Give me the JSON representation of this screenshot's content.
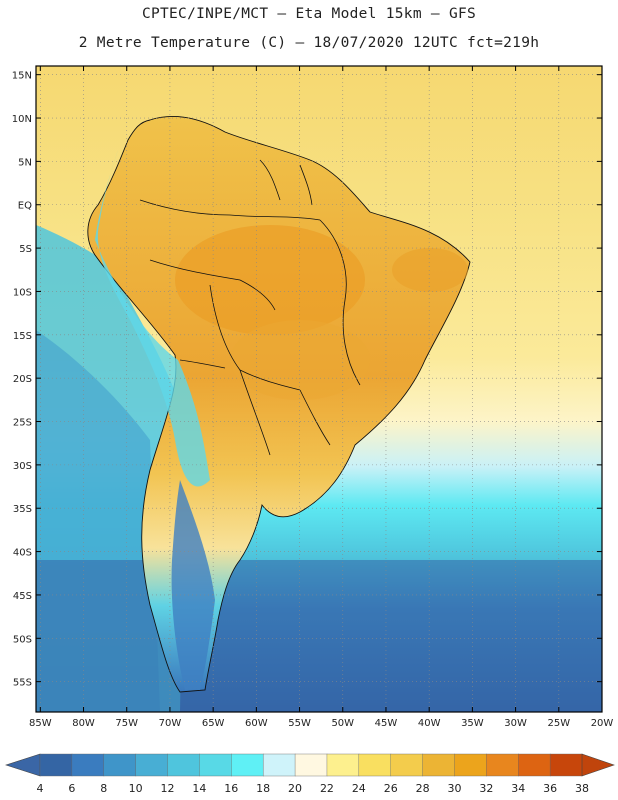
{
  "title": {
    "line1": "CPTEC/INPE/MCT –  Eta Model 15km – GFS",
    "line2": "2 Metre Temperature (C) – 18/07/2020 12UTC fct=219h"
  },
  "map": {
    "region": "South America",
    "projection": "lat-lon",
    "lon_range": [
      -85.5,
      -20
    ],
    "lat_range": [
      -58.5,
      16
    ],
    "lat_ticks": [
      {
        "value": 15,
        "label": "15N"
      },
      {
        "value": 10,
        "label": "10N"
      },
      {
        "value": 5,
        "label": "5N"
      },
      {
        "value": 0,
        "label": "EQ"
      },
      {
        "value": -5,
        "label": "5S"
      },
      {
        "value": -10,
        "label": "10S"
      },
      {
        "value": -15,
        "label": "15S"
      },
      {
        "value": -20,
        "label": "20S"
      },
      {
        "value": -25,
        "label": "25S"
      },
      {
        "value": -30,
        "label": "30S"
      },
      {
        "value": -35,
        "label": "35S"
      },
      {
        "value": -40,
        "label": "40S"
      },
      {
        "value": -45,
        "label": "45S"
      },
      {
        "value": -50,
        "label": "50S"
      },
      {
        "value": -55,
        "label": "55S"
      }
    ],
    "lon_ticks": [
      {
        "value": -85,
        "label": "85W"
      },
      {
        "value": -80,
        "label": "80W"
      },
      {
        "value": -75,
        "label": "75W"
      },
      {
        "value": -70,
        "label": "70W"
      },
      {
        "value": -65,
        "label": "65W"
      },
      {
        "value": -60,
        "label": "60W"
      },
      {
        "value": -55,
        "label": "55W"
      },
      {
        "value": -50,
        "label": "50W"
      },
      {
        "value": -45,
        "label": "45W"
      },
      {
        "value": -40,
        "label": "40W"
      },
      {
        "value": -35,
        "label": "35W"
      },
      {
        "value": -30,
        "label": "30W"
      },
      {
        "value": -25,
        "label": "25W"
      },
      {
        "value": -20,
        "label": "20W"
      }
    ]
  },
  "colorbar": {
    "colors": [
      "#3465a4",
      "#3a7cbf",
      "#3f95c9",
      "#48aed4",
      "#4fc5dd",
      "#58d9e6",
      "#5ff0f5",
      "#cff3fa",
      "#fff8e1",
      "#fdf08e",
      "#f9df60",
      "#f3cc4c",
      "#ecb434",
      "#eca41c",
      "#e8861e",
      "#dd6412",
      "#c7460b"
    ],
    "low_color": "#3a66a6",
    "high_color": "#c0440c",
    "labels": [
      "4",
      "6",
      "8",
      "10",
      "12",
      "14",
      "16",
      "18",
      "20",
      "22",
      "24",
      "26",
      "28",
      "30",
      "32",
      "34",
      "36",
      "38"
    ]
  }
}
